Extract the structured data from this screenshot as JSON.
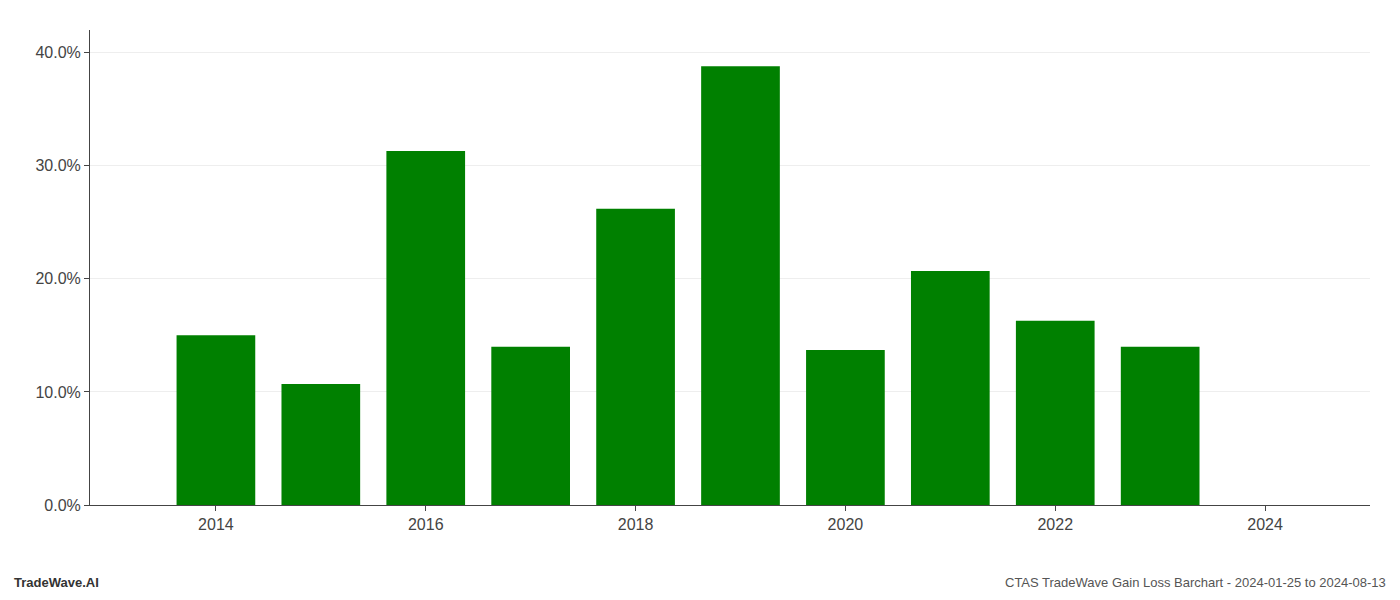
{
  "chart_data": {
    "type": "bar",
    "x": [
      2014,
      2015,
      2016,
      2017,
      2018,
      2019,
      2020,
      2021,
      2022,
      2023
    ],
    "values": [
      0.15,
      0.107,
      0.313,
      0.14,
      0.262,
      0.388,
      0.137,
      0.207,
      0.163,
      0.14
    ],
    "color": "#008000",
    "xlim": [
      2012.8,
      2025.0
    ],
    "xticks": [
      2014,
      2016,
      2018,
      2020,
      2022,
      2024
    ],
    "ylim": [
      0,
      0.42
    ],
    "yticks": [
      {
        "value": 0.0,
        "label": "0.0%"
      },
      {
        "value": 0.1,
        "label": "10.0%"
      },
      {
        "value": 0.2,
        "label": "20.0%"
      },
      {
        "value": 0.3,
        "label": "30.0%"
      },
      {
        "value": 0.4,
        "label": "40.0%"
      }
    ],
    "grid": true,
    "annotations": [
      "TradeWave.AI",
      "CTAS TradeWave Gain Loss Barchart - 2024-01-25 to 2024-08-13"
    ]
  }
}
